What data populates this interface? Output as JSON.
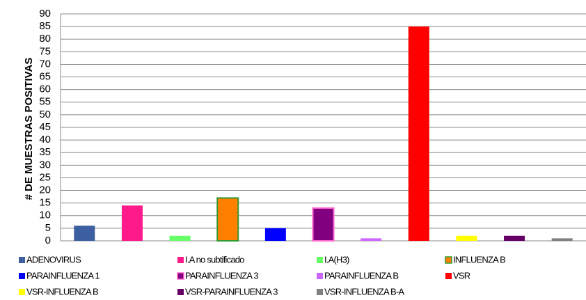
{
  "chart_data": {
    "type": "bar",
    "y_label": "# DE MUESTRAS POSITIVAS",
    "ylim": [
      0,
      90
    ],
    "yticks": [
      0,
      5,
      10,
      15,
      20,
      25,
      30,
      35,
      40,
      45,
      50,
      55,
      60,
      65,
      70,
      75,
      80,
      85,
      90
    ],
    "grid": true,
    "legend": "bottom",
    "series": [
      {
        "name": "ADENOVIRUS",
        "color": "#3b5fa0",
        "values": [
          6
        ]
      },
      {
        "name": "I.A no subtificado",
        "color": "#ff1a8c",
        "values": [
          14
        ]
      },
      {
        "name": "I.A(H3)",
        "color": "#66ff66",
        "values": [
          2
        ]
      },
      {
        "name": "INFLUENZA B",
        "color": "#ff8000",
        "edgecolor": "#339933",
        "values": [
          17
        ]
      },
      {
        "name": "PARAINFLUENZA 1",
        "color": "#0000ff",
        "values": [
          5
        ]
      },
      {
        "name": "PARAINFLUENZA 3",
        "color": "#800080",
        "edgecolor": "#ff66cc",
        "values": [
          13
        ]
      },
      {
        "name": "PARAINFLUENZA B",
        "color": "#cc66ff",
        "values": [
          1
        ]
      },
      {
        "name": "VSR",
        "color": "#ff0000",
        "values": [
          85
        ]
      },
      {
        "name": "VSR-INFLUENZA B",
        "color": "#ffff00",
        "values": [
          2
        ]
      },
      {
        "name": "VSR-PARAINFLUENZA 3",
        "color": "#660066",
        "values": [
          2
        ]
      },
      {
        "name": "VSR-INFLUENZA B-A",
        "color": "#808080",
        "values": [
          1
        ]
      }
    ]
  }
}
